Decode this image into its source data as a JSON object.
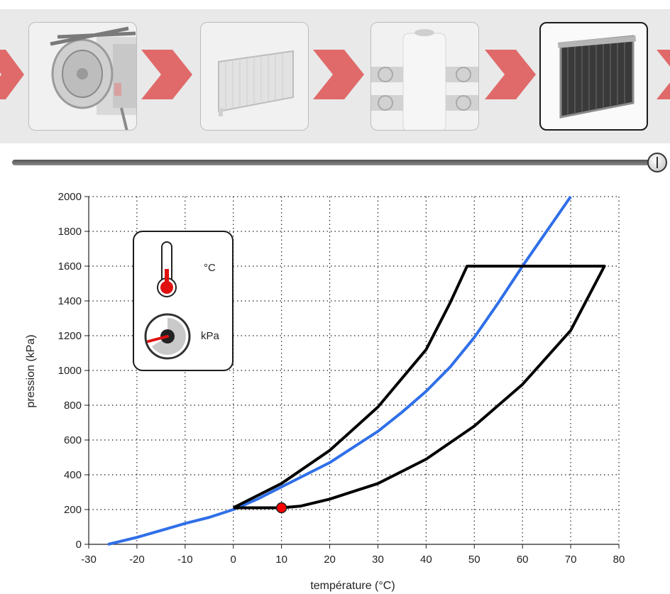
{
  "steps": [
    {
      "name": "compresseur",
      "active": false
    },
    {
      "name": "condenseur",
      "active": false
    },
    {
      "name": "detendeur",
      "active": false
    },
    {
      "name": "evaporateur",
      "active": true
    }
  ],
  "slider": {
    "value": 1.0
  },
  "legend": {
    "temp_unit": "°C",
    "pressure_unit": "kPa"
  },
  "colors": {
    "arrow": "#e06a6a",
    "saturation_curve": "#2f6fe8",
    "cycle": "#000000",
    "marker": "#ff0000",
    "thermo_fill": "#e01010"
  },
  "chart_data": {
    "type": "line",
    "xlabel": "température (°C)",
    "ylabel": "pression (kPa)",
    "xlim": [
      -30,
      80
    ],
    "ylim": [
      0,
      2000
    ],
    "xticks": [
      -30,
      -20,
      -10,
      0,
      10,
      20,
      30,
      40,
      50,
      60,
      70,
      80
    ],
    "yticks": [
      0,
      200,
      400,
      600,
      800,
      1000,
      1200,
      1400,
      1600,
      1800,
      2000
    ],
    "grid": true,
    "series": [
      {
        "type": "saturation",
        "points": [
          [
            -26,
            0
          ],
          [
            -20,
            40
          ],
          [
            -15,
            80
          ],
          [
            -10,
            120
          ],
          [
            -5,
            155
          ],
          [
            0,
            200
          ],
          [
            5,
            260
          ],
          [
            10,
            330
          ],
          [
            15,
            400
          ],
          [
            20,
            470
          ],
          [
            25,
            560
          ],
          [
            30,
            650
          ],
          [
            35,
            760
          ],
          [
            40,
            880
          ],
          [
            45,
            1020
          ],
          [
            50,
            1190
          ],
          [
            55,
            1390
          ],
          [
            60,
            1600
          ],
          [
            65,
            1800
          ],
          [
            70,
            2000
          ]
        ]
      },
      {
        "type": "cycle",
        "points": [
          [
            0,
            210
          ],
          [
            10,
            210
          ],
          [
            14,
            220
          ],
          [
            20,
            260
          ],
          [
            30,
            350
          ],
          [
            40,
            490
          ],
          [
            50,
            680
          ],
          [
            60,
            920
          ],
          [
            70,
            1230
          ],
          [
            77,
            1600
          ],
          [
            48.5,
            1600
          ],
          [
            45,
            1390
          ],
          [
            40,
            1120
          ],
          [
            30,
            790
          ],
          [
            20,
            540
          ],
          [
            10,
            350
          ],
          [
            0,
            210
          ]
        ]
      },
      {
        "type": "marker",
        "points": [
          [
            10,
            210
          ]
        ]
      }
    ]
  }
}
